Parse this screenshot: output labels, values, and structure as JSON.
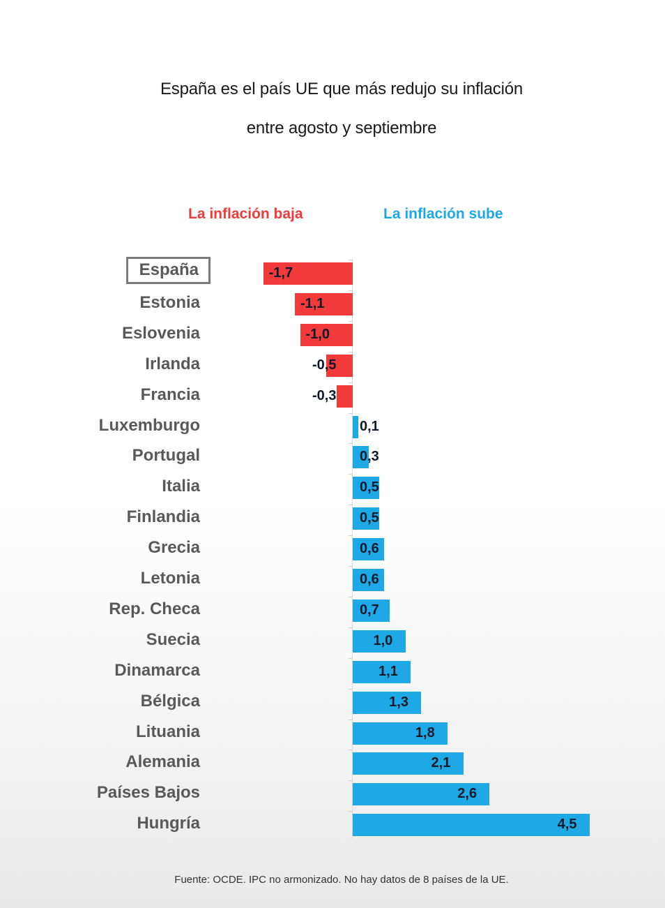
{
  "header": {
    "title_line1": "España es el país UE que más redujo su inflación",
    "title_line2": "entre agosto y septiembre"
  },
  "legend": {
    "negative_label": "La inflación baja",
    "positive_label": "La inflación sube",
    "negative_color": "#f23a3a",
    "positive_color": "#1ea8e6"
  },
  "footer": {
    "source": "Fuente: OCDE. IPC no armonizado. No hay datos de 8 países de la UE."
  },
  "chart_data": {
    "type": "bar",
    "orientation": "horizontal",
    "title": "España es el país UE que más redujo su inflación entre agosto y septiembre",
    "xlabel": "",
    "ylabel": "",
    "grid": false,
    "legend_position": "top",
    "highlighted_category": "España",
    "categories": [
      "España",
      "Estonia",
      "Eslovenia",
      "Irlanda",
      "Francia",
      "Luxemburgo",
      "Portugal",
      "Italia",
      "Finlandia",
      "Grecia",
      "Letonia",
      "Rep. Checa",
      "Suecia",
      "Dinamarca",
      "Bélgica",
      "Lituania",
      "Alemania",
      "Países Bajos",
      "Hungría"
    ],
    "values": [
      -1.7,
      -1.1,
      -1.0,
      -0.5,
      -0.3,
      0.1,
      0.3,
      0.5,
      0.5,
      0.6,
      0.6,
      0.7,
      1.0,
      1.1,
      1.3,
      1.8,
      2.1,
      2.6,
      4.5
    ],
    "value_labels": [
      "-1,7",
      "-1,1",
      "-1,0",
      "-0,5",
      "-0,3",
      "0,1",
      "0,3",
      "0,5",
      "0,5",
      "0,6",
      "0,6",
      "0,7",
      "1,0",
      "1,1",
      "1,3",
      "1,8",
      "2,1",
      "2,6",
      "4,5"
    ],
    "series": [
      {
        "name": "La inflación baja",
        "color": "#f23a3a"
      },
      {
        "name": "La inflación sube",
        "color": "#1ea8e6"
      }
    ],
    "xlim": [
      -1.7,
      4.5
    ]
  }
}
